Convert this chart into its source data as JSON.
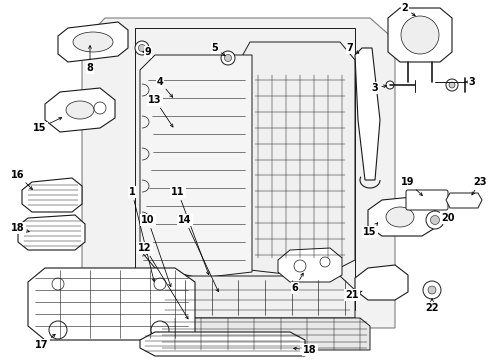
{
  "background_color": "#ffffff",
  "fig_width": 4.89,
  "fig_height": 3.6,
  "dpi": 100,
  "line_color": "#1a1a1a",
  "bg_fill": "#e8e8e8",
  "bg_alpha": 0.55
}
